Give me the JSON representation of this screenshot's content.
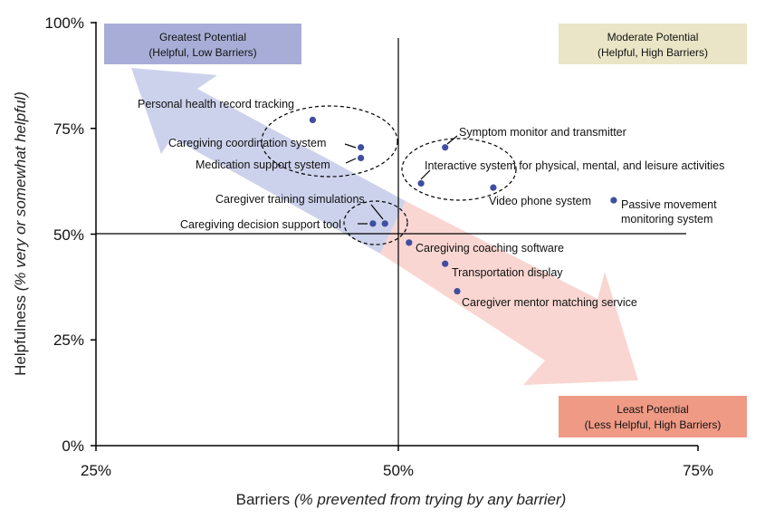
{
  "chart_data": {
    "type": "scatter",
    "x_axis": {
      "label": "Barriers",
      "label_note": "(% prevented from trying by any barrier)",
      "range": [
        25,
        75
      ],
      "ticks": [
        25,
        50,
        75
      ],
      "tick_labels": [
        "25%",
        "50%",
        "75%"
      ]
    },
    "y_axis": {
      "label": "Helpfulness",
      "label_note": "(% very or somewhat helpful)",
      "range": [
        0,
        100
      ],
      "ticks": [
        0,
        25,
        50,
        75,
        100
      ],
      "tick_labels": [
        "0%",
        "25%",
        "50%",
        "75%",
        "100%"
      ]
    },
    "divider_lines": {
      "x": 50,
      "y": 50
    },
    "quadrant_boxes": [
      {
        "id": "greatest",
        "title": "Greatest Potential",
        "subtitle": "(Helpful, Low Barriers)",
        "position": "top-left",
        "color": "#a7add6"
      },
      {
        "id": "moderate",
        "title": "Moderate Potential",
        "subtitle": "(Helpful, High Barriers)",
        "position": "top-right",
        "color": "#e9e5c6"
      },
      {
        "id": "least",
        "title": "Least Potential",
        "subtitle": "(Less Helpful, High Barriers)",
        "position": "bottom-right",
        "color": "#ef9a85"
      }
    ],
    "arrow_colors": {
      "blue": "#cdd2ec",
      "pink": "#f9d6d1"
    },
    "point_color": "#3f4ea0",
    "points": [
      {
        "label": "Personal health record tracking",
        "x": 43,
        "y": 77
      },
      {
        "label": "Caregiving coordination system",
        "x": 47,
        "y": 70.5
      },
      {
        "label": "Medication support system",
        "x": 47,
        "y": 68
      },
      {
        "label": "Symptom monitor and transmitter",
        "x": 54,
        "y": 70.5
      },
      {
        "label": "Interactive system for physical, mental, and leisure activities",
        "x": 52,
        "y": 62
      },
      {
        "label": "Video phone system",
        "x": 58,
        "y": 61
      },
      {
        "label": "Passive movement monitoring system",
        "x": 68,
        "y": 58
      },
      {
        "label": "Caregiver training simulations",
        "x": 49,
        "y": 52.5
      },
      {
        "label": "Caregiving decision support tool",
        "x": 48,
        "y": 52.5
      },
      {
        "label": "Caregiving coaching software",
        "x": 51,
        "y": 48
      },
      {
        "label": "Transportation display",
        "x": 54,
        "y": 43
      },
      {
        "label": "Caregiver mentor matching service",
        "x": 55,
        "y": 36.5
      }
    ]
  }
}
